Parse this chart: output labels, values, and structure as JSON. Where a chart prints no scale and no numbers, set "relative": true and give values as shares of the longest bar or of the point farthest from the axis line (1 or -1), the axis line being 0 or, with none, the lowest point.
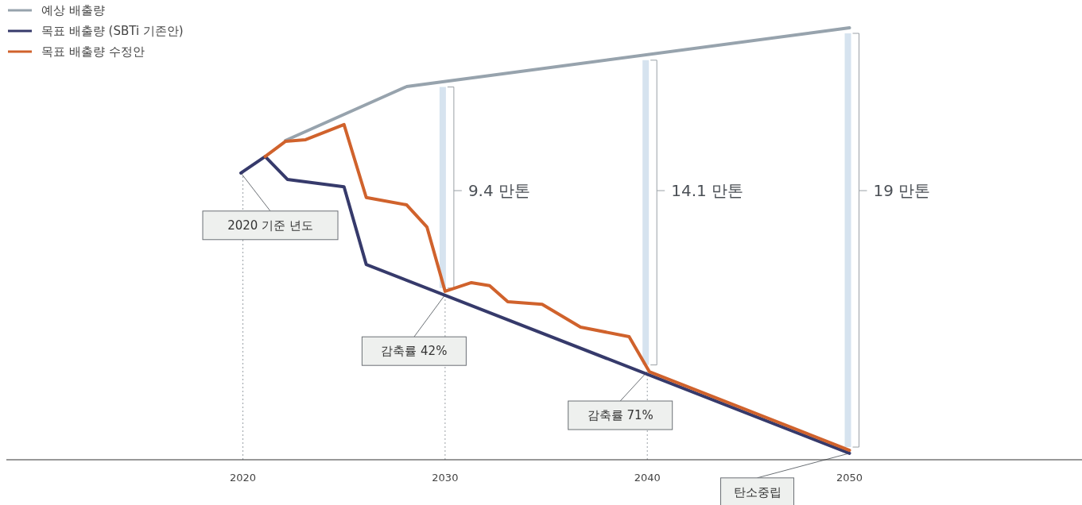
{
  "chart_data": {
    "type": "line",
    "relative": true,
    "xlim": [
      2008.3,
      2061.5
    ],
    "xticks": [
      2020,
      2030,
      2040,
      2050
    ],
    "legend": "top left",
    "series": [
      {
        "name": "예상 배출량",
        "color": "#97a3ad",
        "x": [
          2022.1,
          2028.1,
          2050
        ],
        "values": [
          0.739,
          0.864,
          1.0
        ]
      },
      {
        "name": "목표 배출량 (SBTi 기존안)",
        "color": "#363a6b",
        "x": [
          2019.9,
          2021.1,
          2022.2,
          2025.0,
          2026.1,
          2050
        ],
        "values": [
          0.664,
          0.702,
          0.649,
          0.632,
          0.452,
          0.015
        ]
      },
      {
        "name": "목표 배출량 수정안",
        "color": "#d0622c",
        "x": [
          2021.1,
          2022.1,
          2023.1,
          2025.0,
          2026.1,
          2028.1,
          2029.1,
          2030.0,
          2031.3,
          2032.2,
          2033.1,
          2034.8,
          2036.7,
          2039.1,
          2040.1,
          2050
        ],
        "values": [
          0.702,
          0.737,
          0.741,
          0.776,
          0.607,
          0.59,
          0.539,
          0.39,
          0.41,
          0.403,
          0.366,
          0.36,
          0.307,
          0.285,
          0.204,
          0.022
        ]
      }
    ],
    "ref_lines": [
      {
        "axis": "x",
        "value": 2020,
        "color": "#9aa0a6",
        "line_style": "dotted"
      },
      {
        "axis": "x",
        "value": 2030,
        "color": "#9aa0a6",
        "line_style": "dotted"
      },
      {
        "axis": "x",
        "value": 2040,
        "color": "#9aa0a6",
        "line_style": "dotted"
      }
    ],
    "annotations": [
      {
        "text": "2020 기준 년도",
        "x": 2019.9,
        "y": 0.664
      },
      {
        "text": "감축률 42%",
        "x": 2030,
        "y": 0.382
      },
      {
        "text": "감축률 71%",
        "x": 2040,
        "y": 0.204
      },
      {
        "text": "탄소중립",
        "x": 2050,
        "y": 0.015
      },
      "9.4 만톤",
      "14.1 만톤",
      "19 만톤"
    ]
  }
}
